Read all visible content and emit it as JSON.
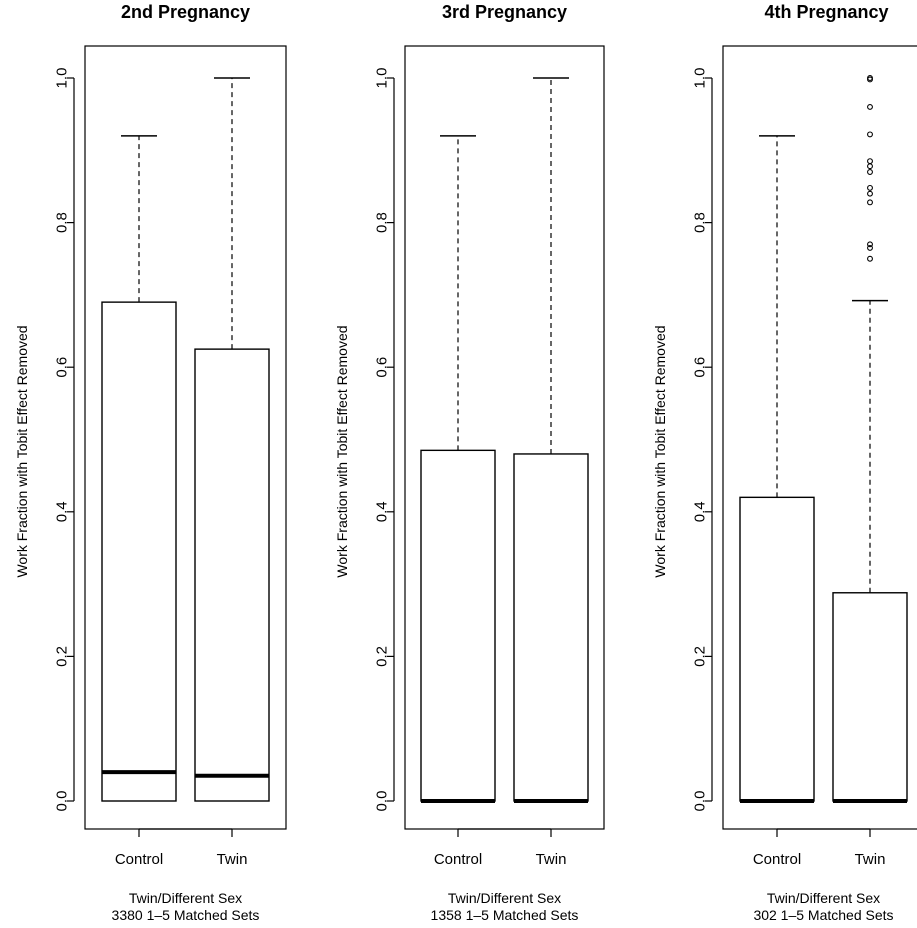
{
  "chart_data": [
    {
      "type": "box",
      "title": "2nd Pregnancy",
      "ylabel": "Work Fraction with Tobit Effect Removed",
      "xlabel": [
        "Twin/Different Sex",
        "3380 1–5 Matched Sets"
      ],
      "categories": [
        "Control",
        "Twin"
      ],
      "ylim": [
        0,
        1
      ],
      "yticks": [
        "0.0",
        "0.2",
        "0.4",
        "0.6",
        "0.8",
        "1.0"
      ],
      "boxes": [
        {
          "name": "Control",
          "min": 0.0,
          "q1": 0.0,
          "median": 0.04,
          "q3": 0.69,
          "max": 0.92,
          "outliers": []
        },
        {
          "name": "Twin",
          "min": 0.0,
          "q1": 0.0,
          "median": 0.035,
          "q3": 0.625,
          "max": 1.0,
          "outliers": []
        }
      ]
    },
    {
      "type": "box",
      "title": "3rd Pregnancy",
      "ylabel": "Work Fraction with Tobit Effect Removed",
      "xlabel": [
        "Twin/Different Sex",
        "1358 1–5 Matched Sets"
      ],
      "categories": [
        "Control",
        "Twin"
      ],
      "ylim": [
        0,
        1
      ],
      "yticks": [
        "0.0",
        "0.2",
        "0.4",
        "0.6",
        "0.8",
        "1.0"
      ],
      "boxes": [
        {
          "name": "Control",
          "min": 0.0,
          "q1": 0.0,
          "median": 0.0,
          "q3": 0.485,
          "max": 0.92,
          "outliers": []
        },
        {
          "name": "Twin",
          "min": 0.0,
          "q1": 0.0,
          "median": 0.0,
          "q3": 0.48,
          "max": 1.0,
          "outliers": []
        }
      ]
    },
    {
      "type": "box",
      "title": "4th Pregnancy",
      "ylabel": "Work Fraction with Tobit Effect Removed",
      "xlabel": [
        "Twin/Different Sex",
        "302 1–5 Matched Sets"
      ],
      "categories": [
        "Control",
        "Twin"
      ],
      "ylim": [
        0,
        1
      ],
      "yticks": [
        "0.0",
        "0.2",
        "0.4",
        "0.6",
        "0.8",
        "1.0"
      ],
      "boxes": [
        {
          "name": "Control",
          "min": 0.0,
          "q1": 0.0,
          "median": 0.0,
          "q3": 0.42,
          "max": 0.92,
          "outliers": []
        },
        {
          "name": "Twin",
          "min": 0.0,
          "q1": 0.0,
          "median": 0.0,
          "q3": 0.288,
          "max": 0.692,
          "outliers": [
            0.75,
            0.765,
            0.77,
            0.828,
            0.84,
            0.848,
            0.87,
            0.878,
            0.885,
            0.922,
            0.96,
            0.998,
            1.0
          ]
        }
      ]
    }
  ]
}
